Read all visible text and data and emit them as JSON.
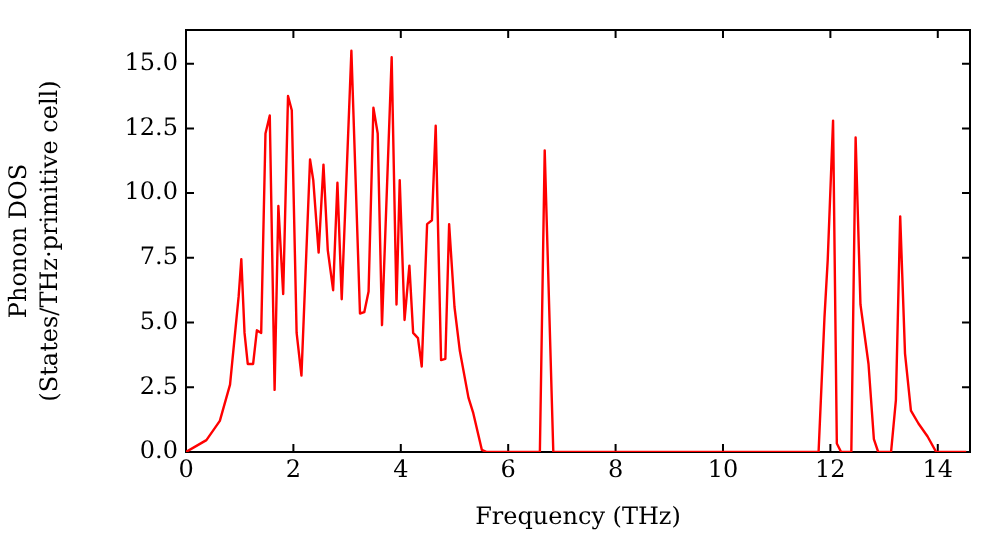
{
  "chart_data": {
    "type": "line",
    "xlabel": "Frequency (THz)",
    "ylabel": "Phonon DOS\n(States/THz·primitive cell)",
    "xlim": [
      0,
      14.6
    ],
    "ylim": [
      0,
      16.3
    ],
    "xticks": [
      0,
      2,
      4,
      6,
      8,
      10,
      12,
      14
    ],
    "yticks": [
      {
        "value": 0,
        "label": "0.0"
      },
      {
        "value": 2.5,
        "label": "2.5"
      },
      {
        "value": 5,
        "label": "5.0"
      },
      {
        "value": 7.5,
        "label": "7.5"
      },
      {
        "value": 10,
        "label": "10.0"
      },
      {
        "value": 12.5,
        "label": "12.5"
      },
      {
        "value": 15,
        "label": "15.0"
      }
    ],
    "grid": false,
    "legend": false,
    "marker": "none",
    "line_style": "solid",
    "series": [
      {
        "color": "#ff0000",
        "x": [
          0,
          0.38,
          0.63,
          0.82,
          0.98,
          1.03,
          1.09,
          1.15,
          1.25,
          1.32,
          1.4,
          1.48,
          1.56,
          1.65,
          1.72,
          1.81,
          1.9,
          1.97,
          2.06,
          2.15,
          2.31,
          2.37,
          2.47,
          2.56,
          2.64,
          2.74,
          2.82,
          2.9,
          3.08,
          3.24,
          3.32,
          3.4,
          3.49,
          3.57,
          3.65,
          3.83,
          3.92,
          3.98,
          4.07,
          4.16,
          4.23,
          4.32,
          4.39,
          4.49,
          4.58,
          4.65,
          4.75,
          4.83,
          4.9,
          5,
          5.1,
          5.26,
          5.35,
          5.51,
          5.6,
          6.59,
          6.68,
          6.84,
          11.78,
          11.89,
          11.95,
          12.05,
          12.12,
          12.2,
          12.39,
          12.47,
          12.56,
          12.71,
          12.81,
          12.89,
          13.13,
          13.22,
          13.3,
          13.39,
          13.5,
          13.64,
          13.81,
          13.97,
          14.53
        ],
        "values": [
          0,
          0.46,
          1.2,
          2.6,
          6,
          7.45,
          4.6,
          3.4,
          3.4,
          4.7,
          4.6,
          12.3,
          13,
          2.4,
          9.5,
          6.1,
          13.75,
          13.2,
          4.6,
          2.95,
          11.3,
          10.5,
          7.7,
          11.1,
          7.8,
          6.25,
          10.4,
          5.9,
          15.5,
          5.35,
          5.4,
          6.2,
          13.3,
          12.3,
          4.9,
          15.25,
          5.7,
          10.5,
          5.1,
          7.2,
          4.6,
          4.4,
          3.3,
          8.8,
          8.95,
          12.6,
          3.55,
          3.6,
          8.8,
          5.6,
          3.9,
          2.1,
          1.5,
          0.08,
          0,
          0,
          11.65,
          0,
          0,
          5.2,
          7.4,
          12.8,
          0.33,
          0,
          0,
          12.15,
          5.7,
          3.4,
          0.5,
          0,
          0,
          2,
          9.1,
          3.8,
          1.6,
          1.1,
          0.6,
          0,
          0
        ]
      }
    ]
  }
}
